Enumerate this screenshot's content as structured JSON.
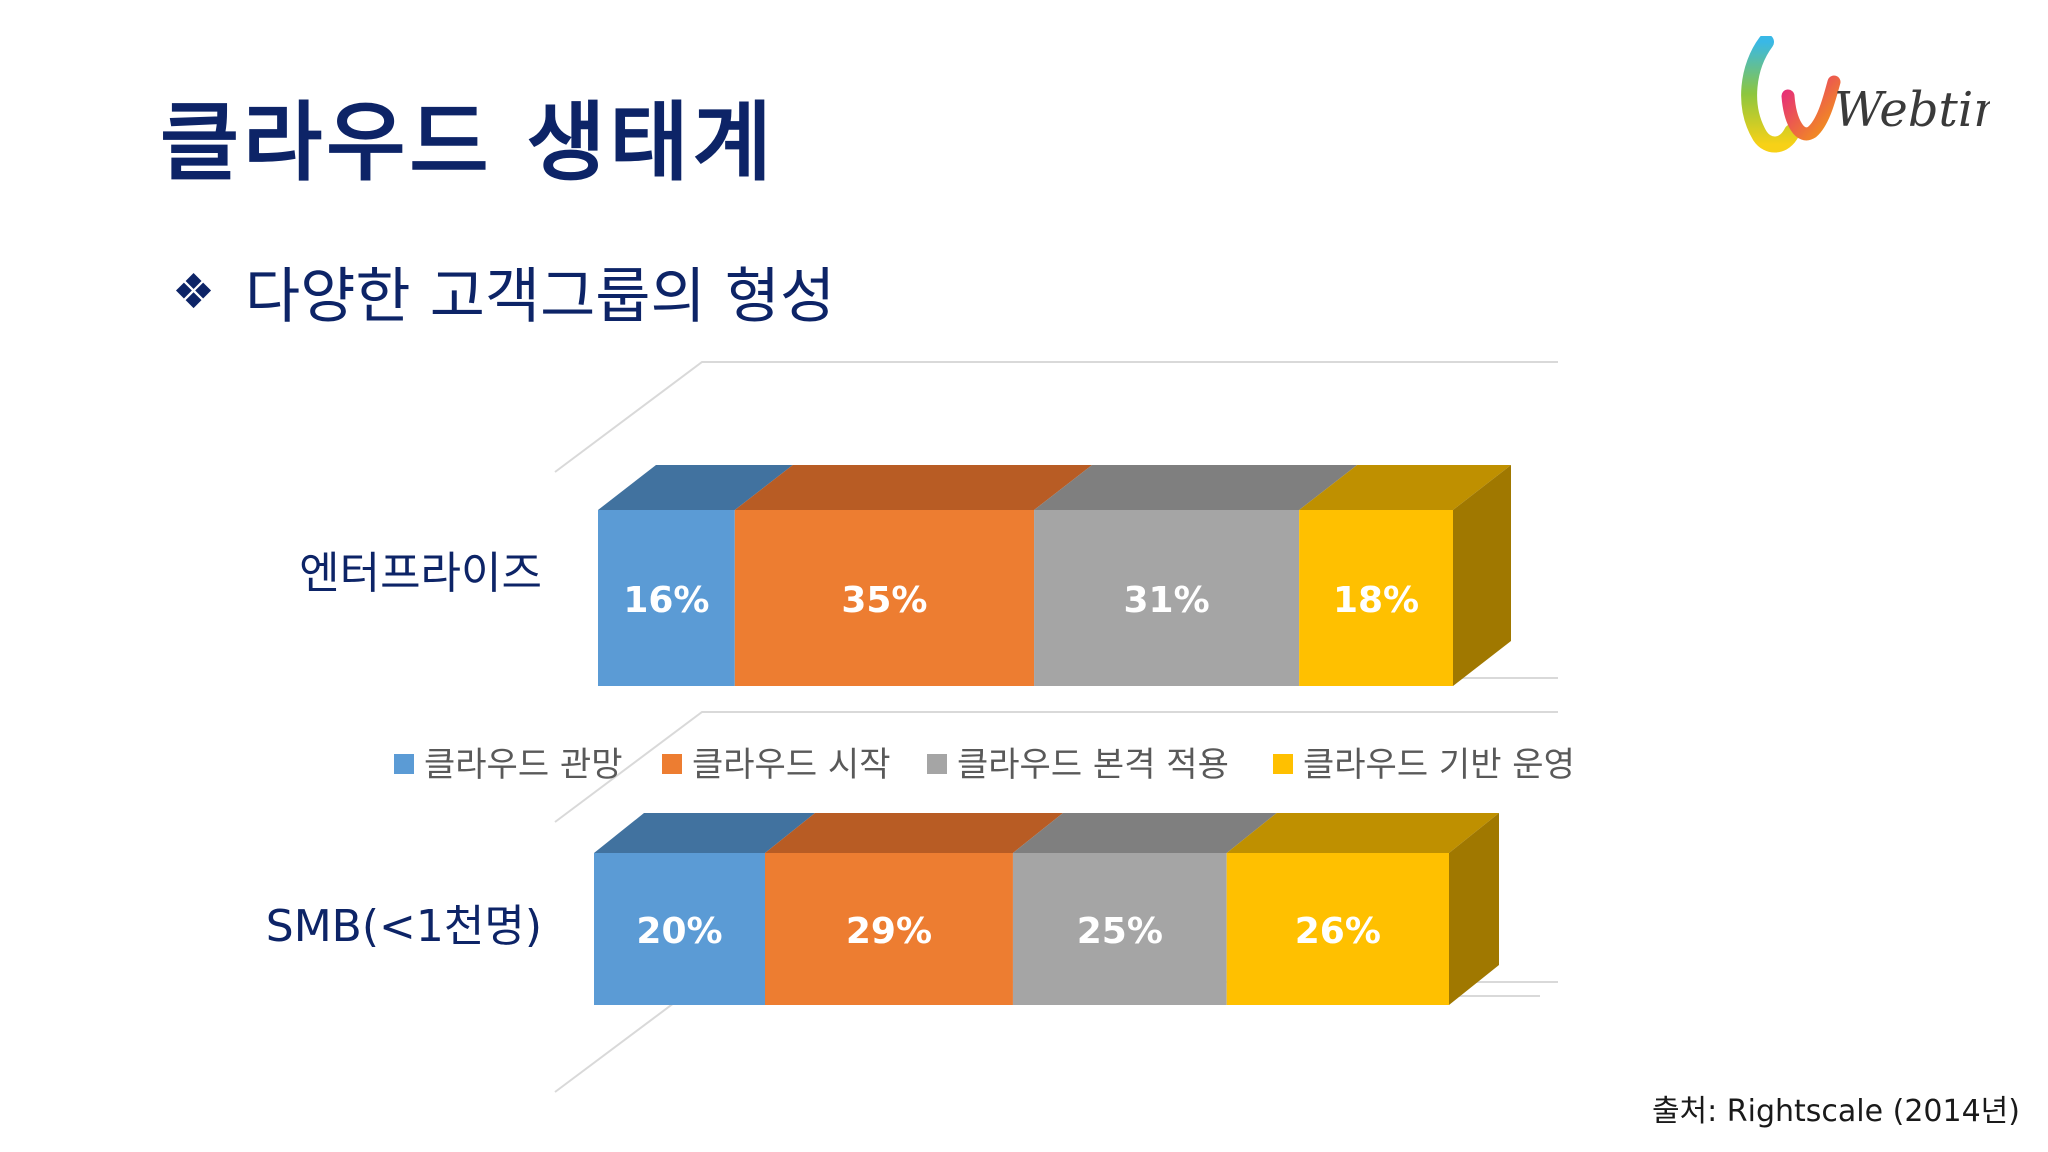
{
  "slide": {
    "title": "클라우드 생태계",
    "bullet": "❖",
    "subtitle": "다양한 고객그룹의 형성",
    "source": "출처: Rightscale (2014년)",
    "logo_text": "Webtime"
  },
  "chart_data": {
    "type": "bar",
    "orientation": "horizontal",
    "stacked": true,
    "percent": true,
    "three_d": true,
    "categories": [
      "엔터프라이즈",
      "SMB(<1천명)"
    ],
    "series": [
      {
        "name": "클라우드 관망",
        "values": [
          16,
          20
        ],
        "color": "#5b9bd5",
        "top": "#41729f",
        "label_color": "#ffffff"
      },
      {
        "name": "클라우드 시작",
        "values": [
          35,
          29
        ],
        "color": "#ed7d31",
        "top": "#b85c24",
        "label_color": "#ffffff"
      },
      {
        "name": "클라우드 본격 적용",
        "values": [
          31,
          25
        ],
        "color": "#a5a5a5",
        "top": "#7f7f7f",
        "label_color": "#ffffff"
      },
      {
        "name": "클라우드 기반 운영",
        "values": [
          18,
          26
        ],
        "color": "#ffc000",
        "top": "#bf9000",
        "side": "#a07800",
        "label_color": "#ffffff"
      }
    ],
    "value_suffix": "%",
    "legend_position": "center"
  }
}
